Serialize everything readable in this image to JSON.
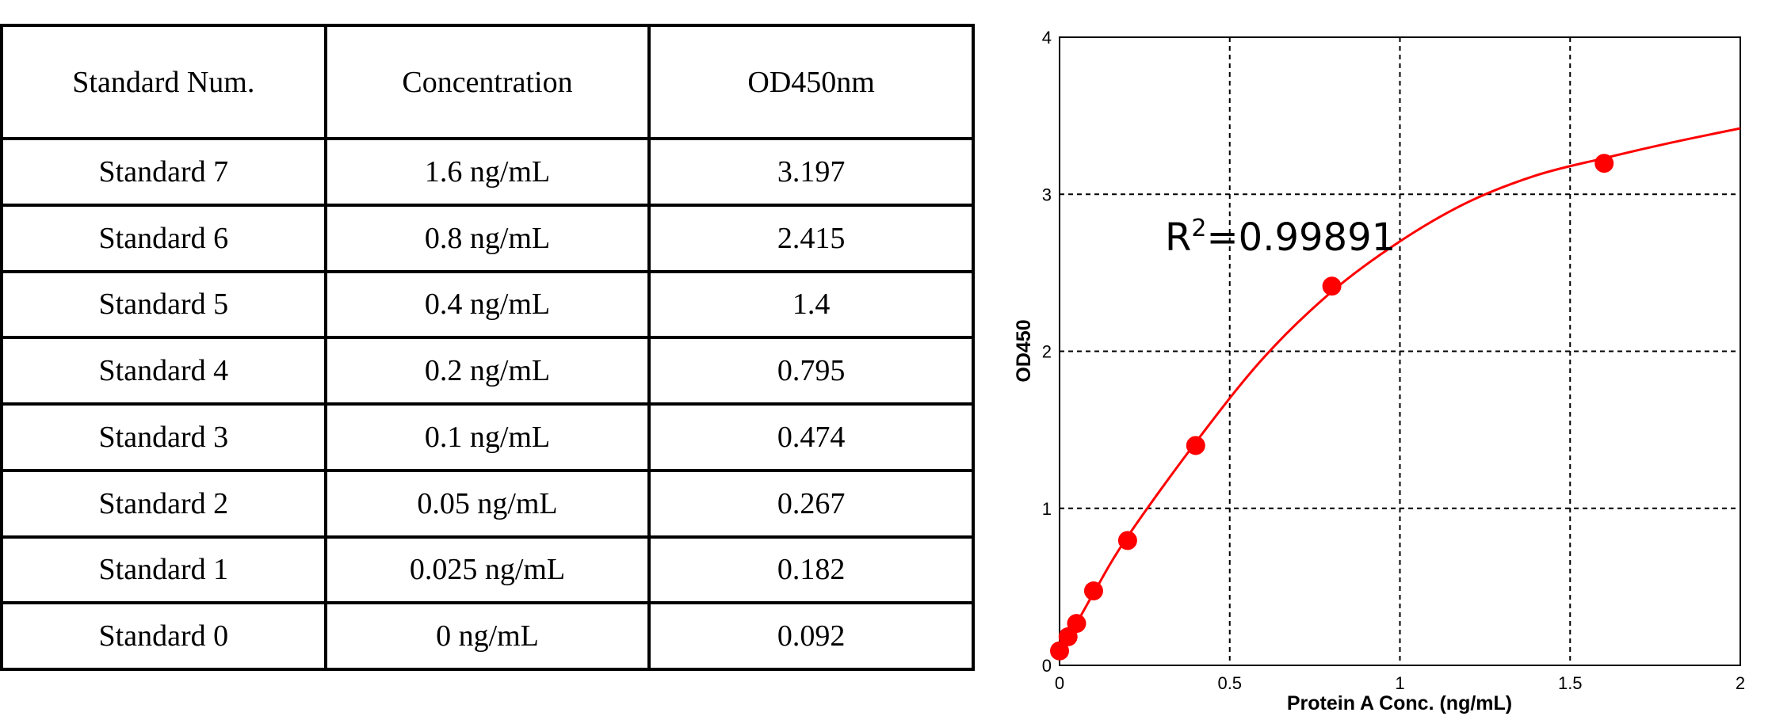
{
  "table": {
    "headers": [
      "Standard Num.",
      "Concentration",
      "OD450nm"
    ],
    "rows": [
      [
        "Standard 7",
        "1.6 ng/mL",
        "3.197"
      ],
      [
        "Standard 6",
        "0.8 ng/mL",
        "2.415"
      ],
      [
        "Standard 5",
        "0.4 ng/mL",
        "1.4"
      ],
      [
        "Standard 4",
        "0.2 ng/mL",
        "0.795"
      ],
      [
        "Standard 3",
        "0.1 ng/mL",
        "0.474"
      ],
      [
        "Standard 2",
        "0.05 ng/mL",
        "0.267"
      ],
      [
        "Standard 1",
        "0.025 ng/mL",
        "0.182"
      ],
      [
        "Standard 0",
        "0 ng/mL",
        "0.092"
      ]
    ]
  },
  "chart_data": {
    "type": "scatter",
    "xlabel": "Protein A Conc. (ng/mL)",
    "ylabel": "OD450",
    "xlim": [
      0,
      2
    ],
    "ylim": [
      0,
      4
    ],
    "xticks": [
      "0",
      "0.5",
      "1",
      "1.5",
      "2"
    ],
    "yticks": [
      "0",
      "1",
      "2",
      "3",
      "4"
    ],
    "grid": true,
    "annotation": {
      "base": "R",
      "sup": "2",
      "rest": "=0.99891"
    },
    "points": {
      "x": [
        0,
        0.025,
        0.05,
        0.1,
        0.2,
        0.4,
        0.8,
        1.6
      ],
      "y": [
        0.092,
        0.182,
        0.267,
        0.474,
        0.795,
        1.4,
        2.415,
        3.197
      ]
    },
    "fit_curve": {
      "x": [
        0,
        0.1,
        0.2,
        0.4,
        0.6,
        0.8,
        1.0,
        1.2,
        1.4,
        1.6,
        1.8,
        2.0
      ],
      "y": [
        0.07,
        0.46,
        0.82,
        1.42,
        1.96,
        2.38,
        2.7,
        2.95,
        3.12,
        3.23,
        3.33,
        3.42
      ]
    },
    "colors": {
      "series": "#ff0000",
      "grid": "#000000"
    }
  }
}
